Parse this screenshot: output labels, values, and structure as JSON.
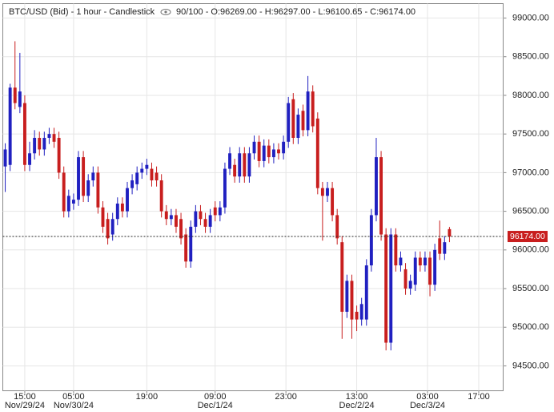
{
  "chart_data": {
    "type": "candlestick",
    "title": "BTC/USD (Bid) - 1 hour - Candlestick",
    "info": "90/100 - O:96269.00 - H:96297.00 - L:96100.65 - C:96174.00",
    "up_color": "#2020c0",
    "down_color": "#c81e1e",
    "grid": true,
    "open": [
      97080,
      97100,
      98100,
      97850,
      97900,
      97100,
      97250,
      97450,
      97300,
      97450,
      97500,
      97450,
      97000,
      96500,
      96600,
      96650,
      97200,
      96700,
      96900,
      97000,
      96550,
      96400,
      96200,
      96400,
      96600,
      96500,
      96800,
      96850,
      97000,
      97050,
      97050,
      97000,
      96900,
      96500,
      96400,
      96450,
      96400,
      96200,
      95850,
      96300,
      96500,
      96400,
      96300,
      96550,
      96450,
      96550,
      97050,
      97100,
      96950,
      97250,
      96950,
      97250,
      97400,
      97150,
      97350,
      97200,
      97300,
      97250,
      97400,
      97950,
      97450,
      97800,
      97550,
      98050,
      97700,
      96800,
      96700,
      96800,
      96450,
      96100,
      95200,
      95600,
      95200,
      95100,
      95100,
      95800,
      96450,
      97200,
      96200,
      94800,
      96200,
      95800,
      95750,
      95500,
      95550,
      95900,
      95800,
      95900,
      95550,
      96150,
      95950,
      96269
    ],
    "high": [
      97380,
      98150,
      98700,
      98550,
      98000,
      97400,
      97550,
      97530,
      97530,
      97580,
      97580,
      97530,
      97080,
      96780,
      96730,
      97280,
      97280,
      96980,
      97080,
      97080,
      96630,
      96480,
      96480,
      96680,
      96680,
      96880,
      96980,
      97080,
      97130,
      97180,
      97130,
      97080,
      96980,
      96580,
      96530,
      96530,
      96480,
      96280,
      96380,
      96580,
      96580,
      96480,
      96530,
      96630,
      96630,
      97130,
      97330,
      97180,
      97330,
      97330,
      97330,
      97480,
      97480,
      97430,
      97430,
      97380,
      97380,
      97480,
      97980,
      98030,
      97830,
      97880,
      98250,
      98130,
      97780,
      96880,
      96880,
      96880,
      96530,
      96180,
      95680,
      95680,
      95280,
      95380,
      95880,
      96530,
      97450,
      97280,
      96280,
      96280,
      96280,
      95980,
      95830,
      95680,
      95980,
      95980,
      95980,
      95980,
      96080,
      96380,
      96180,
      96297
    ],
    "low": [
      96750,
      97020,
      97820,
      97770,
      97020,
      97020,
      97170,
      97220,
      97220,
      97370,
      97320,
      96920,
      96420,
      96420,
      96520,
      96570,
      96620,
      96620,
      96820,
      96470,
      96220,
      96070,
      96120,
      96320,
      96420,
      96420,
      96720,
      96770,
      96920,
      96970,
      96820,
      96820,
      96420,
      96320,
      96320,
      96220,
      96070,
      95770,
      95770,
      96220,
      96320,
      96220,
      96220,
      96370,
      96370,
      96470,
      96970,
      96870,
      96870,
      96870,
      96870,
      97170,
      97070,
      97070,
      97120,
      97120,
      97170,
      97170,
      97320,
      97370,
      97370,
      97470,
      97470,
      97520,
      96720,
      96120,
      96620,
      96370,
      96070,
      94850,
      95120,
      94850,
      94950,
      95020,
      95020,
      95720,
      96370,
      96120,
      94700,
      94700,
      95720,
      95720,
      95420,
      95420,
      95470,
      95720,
      95720,
      95400,
      95470,
      95870,
      95870,
      96100.65
    ],
    "close": [
      97300,
      98100,
      97900,
      98050,
      97100,
      97250,
      97450,
      97300,
      97450,
      97500,
      97400,
      97000,
      96500,
      96700,
      96650,
      97200,
      96700,
      96900,
      97000,
      96550,
      96300,
      96150,
      96400,
      96600,
      96500,
      96800,
      96900,
      97000,
      97050,
      97100,
      96900,
      96900,
      96500,
      96400,
      96450,
      96300,
      96150,
      95850,
      96300,
      96500,
      96400,
      96300,
      96450,
      96450,
      96550,
      97050,
      97250,
      96950,
      97250,
      96950,
      97250,
      97400,
      97150,
      97350,
      97200,
      97300,
      97250,
      97400,
      97900,
      97450,
      97750,
      97550,
      98050,
      97600,
      96800,
      96700,
      96800,
      96450,
      96150,
      95200,
      95600,
      95100,
      95100,
      95300,
      95800,
      96450,
      97200,
      96200,
      94800,
      96200,
      95800,
      95900,
      95500,
      95600,
      95900,
      95800,
      95900,
      95550,
      96000,
      95950,
      96100,
      96174
    ],
    "xlim": [
      -0.5,
      102
    ],
    "xticks": [
      {
        "value": 4,
        "label": "15:00"
      },
      {
        "value": 14,
        "label": "05:00"
      },
      {
        "value": 29,
        "label": "19:00"
      },
      {
        "value": 43,
        "label": "09:00"
      },
      {
        "value": 57.5,
        "label": "23:00"
      },
      {
        "value": 72,
        "label": "13:00"
      },
      {
        "value": 86.5,
        "label": "03:00"
      },
      {
        "value": 97,
        "label": "17:00"
      }
    ],
    "xtick_dates": [
      "Nov/29/24",
      "Nov/30/24",
      null,
      "Dec/1/24",
      null,
      "Dec/2/24",
      "Dec/3/24",
      null
    ],
    "ylim": [
      94178,
      99187
    ],
    "yticks": [
      {
        "value": 94500,
        "label": "94500.00"
      },
      {
        "value": 95000,
        "label": "95000.00"
      },
      {
        "value": 95500,
        "label": "95500.00"
      },
      {
        "value": 96000,
        "label": "96000.00"
      },
      {
        "value": 96500,
        "label": "96500.00"
      },
      {
        "value": 97000,
        "label": "97000.00"
      },
      {
        "value": 97500,
        "label": "97500.00"
      },
      {
        "value": 98000,
        "label": "98000.00"
      },
      {
        "value": 98500,
        "label": "98500.00"
      },
      {
        "value": 99000,
        "label": "99000.00"
      }
    ],
    "last_price": 96174,
    "last_price_label": "96174.00",
    "last_price_color": "#c81e1e"
  }
}
